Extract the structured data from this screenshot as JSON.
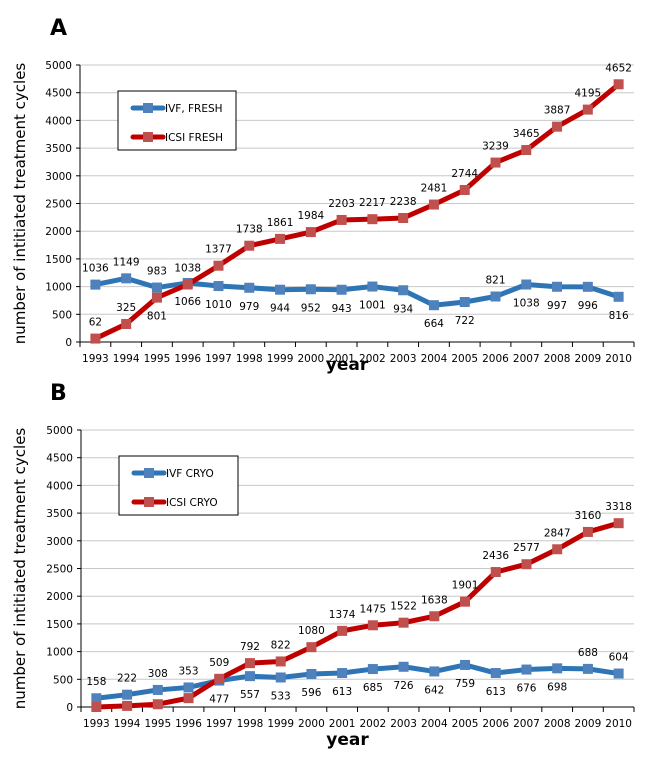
{
  "chart_data": [
    {
      "panel": "A",
      "type": "line",
      "title": "",
      "xlabel": "year",
      "ylabel": "number of intitiated treatment cycles",
      "ylim": [
        0,
        5000
      ],
      "yticks": [
        0,
        500,
        1000,
        1500,
        2000,
        2500,
        3000,
        3500,
        4000,
        4500,
        5000
      ],
      "grid": true,
      "legend_position": "top-left",
      "categories": [
        "1993",
        "1994",
        "1995",
        "1996",
        "1997",
        "1998",
        "1999",
        "2000",
        "2001",
        "2002",
        "2003",
        "2004",
        "2005",
        "2006",
        "2007",
        "2008",
        "2009",
        "2010"
      ],
      "series": [
        {
          "name": "IVF, FRESH",
          "color": "#2e75b6",
          "marker_color": "#4f81bd",
          "values": [
            1036,
            1149,
            983,
            1066,
            1010,
            979,
            944,
            952,
            943,
            1001,
            934,
            664,
            722,
            821,
            1038,
            997,
            996,
            816
          ],
          "label_pos": [
            "above",
            "above",
            "above",
            "below",
            "below",
            "below",
            "below",
            "below",
            "below",
            "below",
            "below",
            "below",
            "below",
            "above",
            "below",
            "below",
            "below",
            "below"
          ]
        },
        {
          "name": "ICSI FRESH",
          "color": "#c00000",
          "marker_color": "#c0504d",
          "values": [
            62,
            325,
            801,
            1038,
            1377,
            1738,
            1861,
            1984,
            2203,
            2217,
            2238,
            2481,
            2744,
            3239,
            3465,
            3887,
            4195,
            4652
          ],
          "label_pos": [
            "above",
            "above",
            "below",
            "above",
            "above",
            "above",
            "above",
            "above",
            "above",
            "above",
            "above",
            "above",
            "above",
            "above",
            "above",
            "above",
            "above",
            "above"
          ]
        }
      ]
    },
    {
      "panel": "B",
      "type": "line",
      "title": "",
      "xlabel": "year",
      "ylabel": "number of intitiated treatment cycles",
      "ylim": [
        0,
        5000
      ],
      "yticks": [
        0,
        500,
        1000,
        1500,
        2000,
        2500,
        3000,
        3500,
        4000,
        4500,
        5000
      ],
      "grid": true,
      "legend_position": "top-left",
      "categories": [
        "1993",
        "1994",
        "1995",
        "1996",
        "1997",
        "1998",
        "1999",
        "2000",
        "2001",
        "2002",
        "2003",
        "2004",
        "2005",
        "2006",
        "2007",
        "2008",
        "2009",
        "2010"
      ],
      "series": [
        {
          "name": "IVF CRYO",
          "color": "#2e75b6",
          "marker_color": "#4f81bd",
          "values": [
            158,
            222,
            308,
            353,
            477,
            557,
            533,
            596,
            613,
            685,
            726,
            642,
            759,
            613,
            676,
            698,
            688,
            604
          ],
          "label_pos": [
            "above",
            "above",
            "above",
            "above",
            "below",
            "below",
            "below",
            "below",
            "below",
            "below",
            "below",
            "below",
            "below",
            "below",
            "below",
            "below",
            "above",
            "above"
          ]
        },
        {
          "name": "ICSI CRYO",
          "color": "#c00000",
          "marker_color": "#c0504d",
          "values": [
            0,
            20,
            50,
            160,
            509,
            792,
            822,
            1080,
            1374,
            1475,
            1522,
            1638,
            1901,
            2436,
            2577,
            2847,
            3160,
            3318
          ],
          "labels_shown": [
            false,
            false,
            false,
            false,
            true,
            true,
            true,
            true,
            true,
            true,
            true,
            true,
            true,
            true,
            true,
            true,
            true,
            true
          ],
          "label_pos": [
            "none",
            "none",
            "none",
            "none",
            "above",
            "above",
            "above",
            "above",
            "above",
            "above",
            "above",
            "above",
            "above",
            "above",
            "above",
            "above",
            "above",
            "above"
          ]
        }
      ]
    }
  ]
}
